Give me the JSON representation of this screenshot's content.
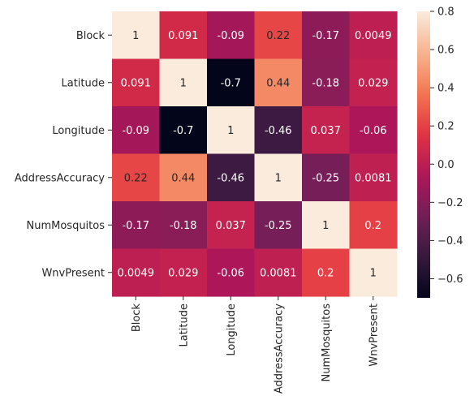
{
  "chart_data": {
    "type": "heatmap",
    "labels": [
      "Block",
      "Latitude",
      "Longitude",
      "AddressAccuracy",
      "NumMosquitos",
      "WnvPresent"
    ],
    "values": [
      [
        1,
        0.091,
        -0.09,
        0.22,
        -0.17,
        0.0049
      ],
      [
        0.091,
        1,
        -0.7,
        0.44,
        -0.18,
        0.029
      ],
      [
        -0.09,
        -0.7,
        1,
        -0.46,
        0.037,
        -0.06
      ],
      [
        0.22,
        0.44,
        -0.46,
        1,
        -0.25,
        0.0081
      ],
      [
        -0.17,
        -0.18,
        0.037,
        -0.25,
        1,
        0.2
      ],
      [
        0.0049,
        0.029,
        -0.06,
        0.0081,
        0.2,
        1
      ]
    ],
    "annotations": [
      [
        "1",
        "0.091",
        "-0.09",
        "0.22",
        "-0.17",
        "0.0049"
      ],
      [
        "0.091",
        "1",
        "-0.7",
        "0.44",
        "-0.18",
        "0.029"
      ],
      [
        "-0.09",
        "-0.7",
        "1",
        "-0.46",
        "0.037",
        "-0.06"
      ],
      [
        "0.22",
        "0.44",
        "-0.46",
        "1",
        "-0.25",
        "0.0081"
      ],
      [
        "-0.17",
        "-0.18",
        "0.037",
        "-0.25",
        "1",
        "0.2"
      ],
      [
        "0.0049",
        "0.029",
        "-0.06",
        "0.0081",
        "0.2",
        "1"
      ]
    ],
    "colorbar": {
      "min": -0.7,
      "max": 0.8,
      "ticks": [
        0.8,
        0.6,
        0.4,
        0.2,
        0.0,
        -0.2,
        -0.4,
        -0.6
      ],
      "tick_labels": [
        "0.8",
        "0.6",
        "0.4",
        "0.2",
        "0.0",
        "−0.2",
        "−0.4",
        "−0.6"
      ]
    },
    "colormap": "rocket",
    "colormap_stops": [
      "#03051a",
      "#36193e",
      "#701f57",
      "#ae1759",
      "#e13342",
      "#f37651",
      "#f6b48f",
      "#faebdd"
    ]
  }
}
